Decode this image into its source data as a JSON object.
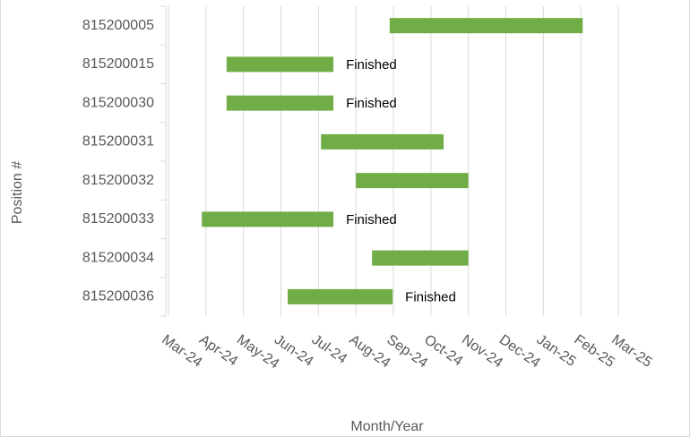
{
  "chart_data": {
    "type": "gantt",
    "categories": [
      "815200005",
      "815200015",
      "815200030",
      "815200031",
      "815200032",
      "815200033",
      "815200034",
      "815200036"
    ],
    "starts": [
      5.9,
      1.55,
      1.55,
      4.07,
      5.0,
      0.89,
      5.43,
      3.18
    ],
    "ends": [
      11.05,
      4.4,
      4.4,
      7.34,
      8.0,
      4.4,
      8.0,
      5.98
    ],
    "color": "#70ad47",
    "xlim": [
      0,
      12
    ],
    "xticks": [
      {
        "value": 0,
        "label": "Mar-24"
      },
      {
        "value": 1,
        "label": "Apr-24"
      },
      {
        "value": 2,
        "label": "May-24"
      },
      {
        "value": 3,
        "label": "Jun-24"
      },
      {
        "value": 4,
        "label": "Jul-24"
      },
      {
        "value": 5,
        "label": "Aug-24"
      },
      {
        "value": 6,
        "label": "Sep-24"
      },
      {
        "value": 7,
        "label": "Oct-24"
      },
      {
        "value": 8,
        "label": "Nov-24"
      },
      {
        "value": 9,
        "label": "Dec-24"
      },
      {
        "value": 10,
        "label": "Jan-25"
      },
      {
        "value": 11,
        "label": "Feb-25"
      },
      {
        "value": 12,
        "label": "Mar-25"
      }
    ],
    "grid": true,
    "xlabel": "Month/Year",
    "ylabel": "Position #",
    "annotations": [
      {
        "category": "815200015",
        "text": "Finished"
      },
      {
        "category": "815200030",
        "text": "Finished"
      },
      {
        "category": "815200033",
        "text": "Finished"
      },
      {
        "category": "815200036",
        "text": "Finished"
      }
    ]
  }
}
